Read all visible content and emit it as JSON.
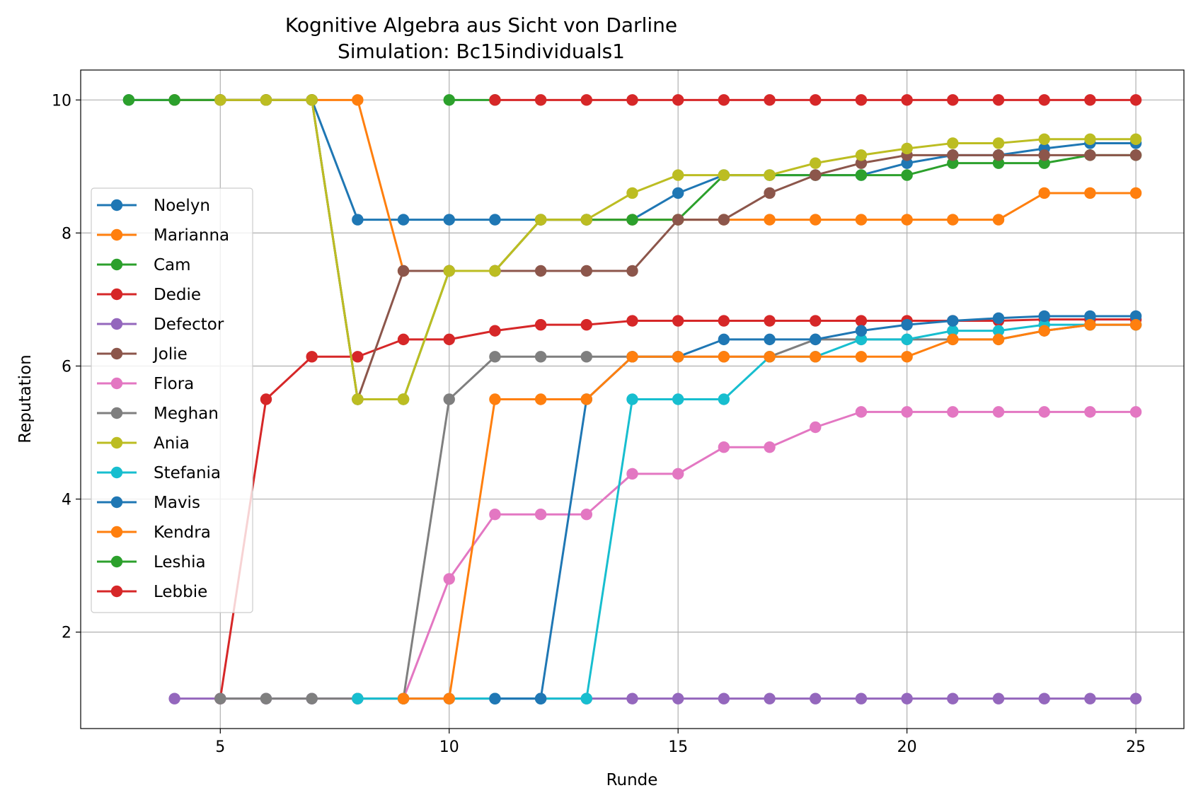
{
  "chart_data": {
    "type": "line",
    "title": "Kognitive Algebra aus Sicht von Darline",
    "subtitle": "Simulation: Bc15individuals1",
    "xlabel": "Runde",
    "ylabel": "Reputation",
    "xlim": [
      1.95,
      26.05
    ],
    "ylim": [
      0.55,
      10.45
    ],
    "xticks": [
      5,
      10,
      15,
      20,
      25
    ],
    "yticks": [
      2,
      4,
      6,
      8,
      10
    ],
    "grid": true,
    "legend_position": "center-left",
    "series": [
      {
        "name": "Noelyn",
        "color": "#1f77b4",
        "x": [
          3,
          4,
          5,
          6,
          7,
          8,
          9,
          10,
          11,
          12,
          13,
          14,
          15,
          16,
          17,
          18,
          19,
          20,
          21,
          22,
          23,
          24,
          25
        ],
        "y": [
          10,
          10,
          10,
          10,
          10,
          8.2,
          8.2,
          8.2,
          8.2,
          8.2,
          8.2,
          8.2,
          8.6,
          8.87,
          8.87,
          8.87,
          8.87,
          9.05,
          9.17,
          9.17,
          9.27,
          9.35,
          9.35
        ]
      },
      {
        "name": "Marianna",
        "color": "#ff7f0e",
        "x": [
          4,
          5,
          6,
          7,
          8,
          9,
          10,
          11,
          12,
          13,
          14,
          15,
          16,
          17,
          18,
          19,
          20,
          21,
          22,
          23,
          24,
          25
        ],
        "y": [
          10,
          10,
          10,
          10,
          10,
          7.43,
          7.43,
          7.43,
          8.2,
          8.2,
          8.2,
          8.2,
          8.2,
          8.2,
          8.2,
          8.2,
          8.2,
          8.2,
          8.2,
          8.6,
          8.6,
          8.6
        ]
      },
      {
        "name": "Cam",
        "color": "#2ca02c",
        "x": [
          3,
          4,
          5,
          6,
          7,
          8,
          9,
          10,
          11,
          12,
          13,
          14,
          15,
          16,
          17,
          18,
          19,
          20,
          21,
          22,
          23,
          24,
          25
        ],
        "y": [
          10,
          10,
          10,
          10,
          10,
          5.5,
          5.5,
          7.43,
          7.43,
          8.2,
          8.2,
          8.2,
          8.2,
          8.87,
          8.87,
          8.87,
          8.87,
          8.87,
          9.05,
          9.05,
          9.05,
          9.17,
          9.17
        ]
      },
      {
        "name": "Dedie",
        "color": "#d62728",
        "x": [
          5,
          6,
          7,
          8,
          9,
          10,
          11,
          12,
          13,
          14,
          15,
          16,
          17,
          18,
          19,
          20,
          21,
          22,
          23,
          24,
          25
        ],
        "y": [
          1,
          5.5,
          6.14,
          6.14,
          6.4,
          6.4,
          6.53,
          6.62,
          6.62,
          6.68,
          6.68,
          6.68,
          6.68,
          6.68,
          6.68,
          6.68,
          6.68,
          6.68,
          6.7,
          6.7,
          6.7
        ]
      },
      {
        "name": "Defector",
        "color": "#9467bd",
        "x": [
          4,
          5,
          6,
          7,
          8,
          9,
          10,
          11,
          12,
          13,
          14,
          15,
          16,
          17,
          18,
          19,
          20,
          21,
          22,
          23,
          24,
          25
        ],
        "y": [
          1,
          1,
          1,
          1,
          1,
          1,
          1,
          1,
          1,
          1,
          1,
          1,
          1,
          1,
          1,
          1,
          1,
          1,
          1,
          1,
          1,
          1
        ]
      },
      {
        "name": "Jolie",
        "color": "#8c564b",
        "x": [
          5,
          6,
          7,
          8,
          9,
          10,
          11,
          12,
          13,
          14,
          15,
          16,
          17,
          18,
          19,
          20,
          21,
          22,
          23,
          24,
          25
        ],
        "y": [
          10,
          10,
          10,
          5.5,
          7.43,
          7.43,
          7.43,
          7.43,
          7.43,
          7.43,
          8.2,
          8.2,
          8.6,
          8.87,
          9.05,
          9.17,
          9.17,
          9.17,
          9.17,
          9.17,
          9.17
        ]
      },
      {
        "name": "Flora",
        "color": "#e377c2",
        "x": [
          9,
          10,
          11,
          12,
          13,
          14,
          15,
          16,
          17,
          18,
          19,
          20,
          21,
          22,
          23,
          24,
          25
        ],
        "y": [
          1,
          2.8,
          3.77,
          3.77,
          3.77,
          4.38,
          4.38,
          4.78,
          4.78,
          5.08,
          5.31,
          5.31,
          5.31,
          5.31,
          5.31,
          5.31,
          5.31
        ]
      },
      {
        "name": "Meghan",
        "color": "#7f7f7f",
        "x": [
          5,
          6,
          7,
          8,
          9,
          10,
          11,
          12,
          13,
          14,
          15,
          16,
          17,
          18,
          19,
          20,
          21,
          22,
          23,
          24,
          25
        ],
        "y": [
          1,
          1,
          1,
          1,
          1,
          5.5,
          6.14,
          6.14,
          6.14,
          6.14,
          6.14,
          6.14,
          6.14,
          6.4,
          6.4,
          6.4,
          6.4,
          6.4,
          6.53,
          6.62,
          6.62
        ]
      },
      {
        "name": "Ania",
        "color": "#bcbd22",
        "x": [
          5,
          6,
          7,
          8,
          9,
          10,
          11,
          12,
          13,
          14,
          15,
          16,
          17,
          18,
          19,
          20,
          21,
          22,
          23,
          24,
          25
        ],
        "y": [
          10,
          10,
          10,
          5.5,
          5.5,
          7.43,
          7.43,
          8.2,
          8.2,
          8.6,
          8.87,
          8.87,
          8.87,
          9.05,
          9.17,
          9.27,
          9.35,
          9.35,
          9.41,
          9.41,
          9.41
        ]
      },
      {
        "name": "Stefania",
        "color": "#17becf",
        "x": [
          8,
          9,
          10,
          11,
          12,
          13,
          14,
          15,
          16,
          17,
          18,
          19,
          20,
          21,
          22,
          23,
          24,
          25
        ],
        "y": [
          1,
          1,
          1,
          1,
          1,
          1,
          5.5,
          5.5,
          5.5,
          6.14,
          6.14,
          6.4,
          6.4,
          6.53,
          6.53,
          6.62,
          6.62,
          6.62
        ]
      },
      {
        "name": "Mavis",
        "color": "#1f77b4",
        "x": [
          11,
          12,
          13,
          14,
          15,
          16,
          17,
          18,
          19,
          20,
          21,
          22,
          23,
          24,
          25
        ],
        "y": [
          1,
          1,
          5.5,
          6.14,
          6.14,
          6.4,
          6.4,
          6.4,
          6.53,
          6.62,
          6.68,
          6.72,
          6.75,
          6.75,
          6.75
        ]
      },
      {
        "name": "Kendra",
        "color": "#ff7f0e",
        "x": [
          9,
          10,
          11,
          12,
          13,
          14,
          15,
          16,
          17,
          18,
          19,
          20,
          21,
          22,
          23,
          24,
          25
        ],
        "y": [
          1,
          1,
          5.5,
          5.5,
          5.5,
          6.14,
          6.14,
          6.14,
          6.14,
          6.14,
          6.14,
          6.14,
          6.4,
          6.4,
          6.53,
          6.62,
          6.62
        ]
      },
      {
        "name": "Leshia",
        "color": "#2ca02c",
        "x": [
          10,
          11
        ],
        "y": [
          10,
          10
        ]
      },
      {
        "name": "Lebbie",
        "color": "#d62728",
        "x": [
          11,
          12,
          13,
          14,
          15,
          16,
          17,
          18,
          19,
          20,
          21,
          22,
          23,
          24,
          25
        ],
        "y": [
          10,
          10,
          10,
          10,
          10,
          10,
          10,
          10,
          10,
          10,
          10,
          10,
          10,
          10,
          10
        ]
      }
    ]
  }
}
